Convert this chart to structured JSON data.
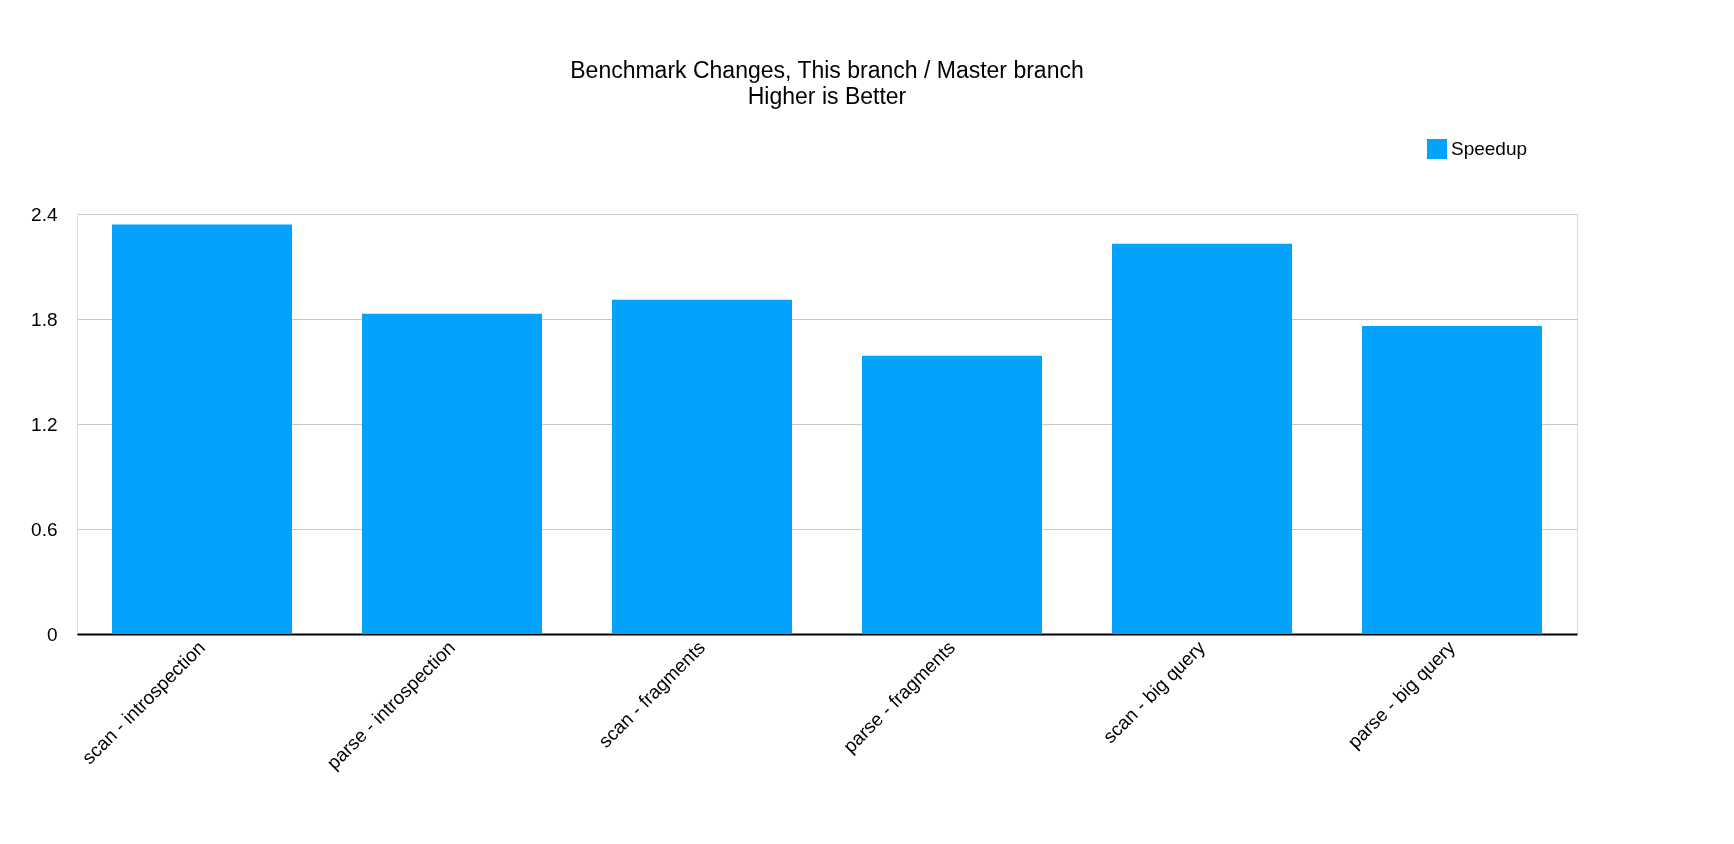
{
  "chart_data": {
    "type": "bar",
    "title": "Benchmark Changes, This branch / Master branch",
    "subtitle": "Higher is Better",
    "categories": [
      "scan - introspection",
      "parse - introspection",
      "scan - fragments",
      "parse - fragments",
      "scan - big query",
      "parse - big query"
    ],
    "series": [
      {
        "name": "Speedup",
        "color": "#03a2fd",
        "values": [
          2.34,
          1.83,
          1.91,
          1.59,
          2.23,
          1.76
        ]
      }
    ],
    "ylim": [
      0,
      2.4
    ],
    "yticks": [
      0,
      0.6,
      1.2,
      1.8,
      2.4
    ],
    "grid": "y",
    "legend": "top right"
  }
}
